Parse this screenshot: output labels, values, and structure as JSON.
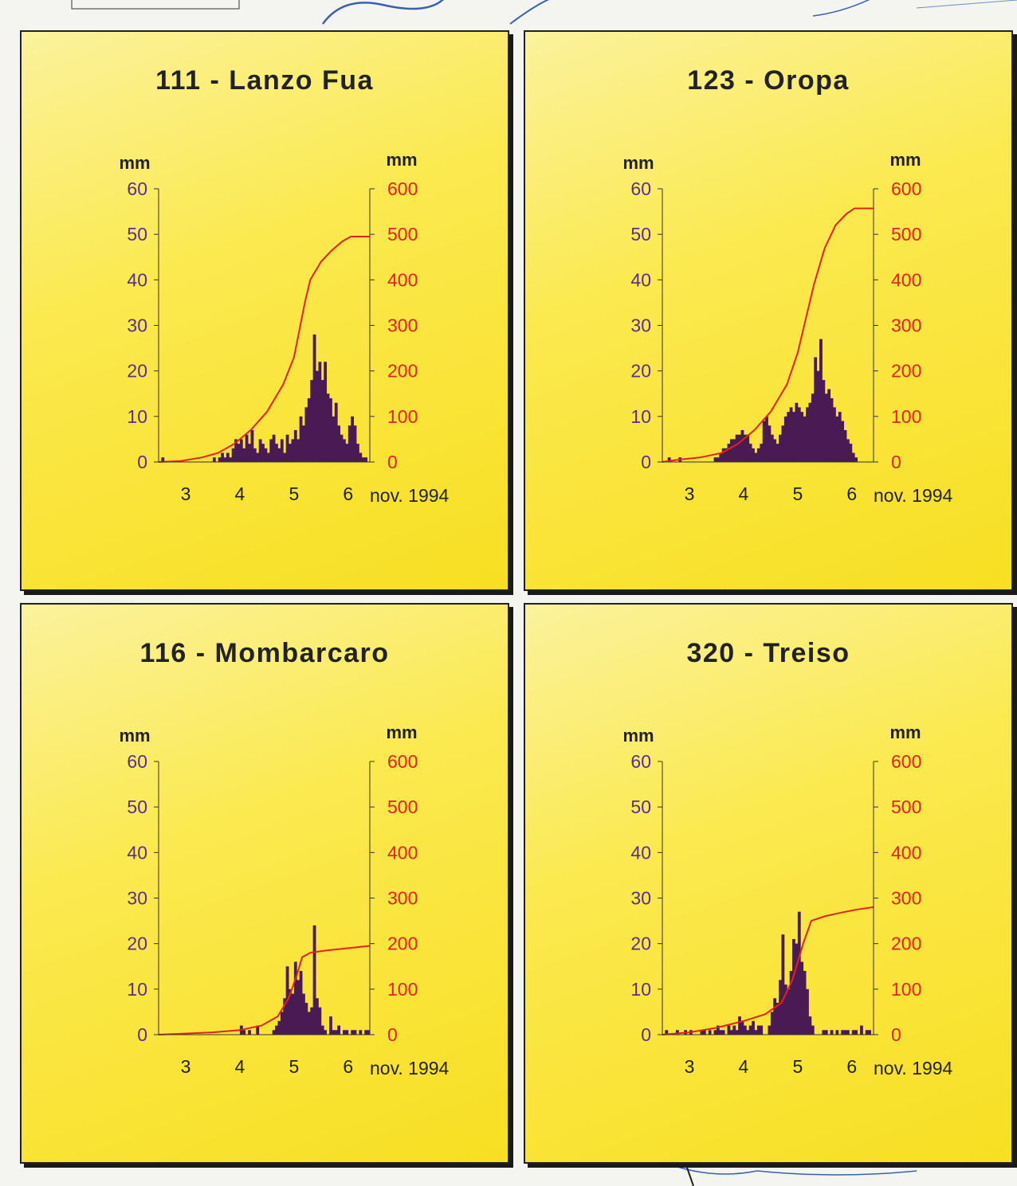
{
  "colors": {
    "left_axis": "#5a2f8c",
    "right_axis": "#e8201b",
    "bars": "#4a1a55",
    "cumulative": "#e8201b",
    "axis_line": "#333333",
    "unit_label": "#222222"
  },
  "panels": [
    {
      "title": "111 - Lanzo Fua",
      "chart_data": {
        "type": "bar",
        "unit_left": "mm",
        "unit_right": "mm",
        "y_left_ticks": [
          0,
          10,
          20,
          30,
          40,
          50,
          60
        ],
        "y_right_ticks": [
          0,
          100,
          200,
          300,
          400,
          500,
          600
        ],
        "ylim_left": [
          0,
          60
        ],
        "ylim_right": [
          0,
          600
        ],
        "x_ticks": [
          3,
          4,
          5,
          6
        ],
        "x_caption": "nov. 1994",
        "xlim": [
          2.5,
          6.4
        ],
        "bar_values": [
          0,
          1,
          0,
          0,
          0,
          0,
          0,
          0,
          0,
          0,
          0,
          0,
          0,
          0,
          0,
          0,
          0,
          0,
          0,
          0,
          1,
          0,
          1,
          2,
          1,
          2,
          1,
          3,
          5,
          4,
          5,
          3,
          6,
          4,
          7,
          3,
          2,
          5,
          4,
          3,
          2,
          5,
          6,
          4,
          3,
          5,
          2,
          6,
          4,
          5,
          7,
          5,
          10,
          8,
          12,
          14,
          18,
          28,
          20,
          22,
          18,
          22,
          15,
          14,
          10,
          13,
          8,
          6,
          5,
          4,
          8,
          10,
          8,
          4,
          2,
          1,
          1,
          0
        ],
        "cumulative": [
          [
            2.5,
            0
          ],
          [
            2.9,
            2
          ],
          [
            3.3,
            10
          ],
          [
            3.6,
            20
          ],
          [
            3.9,
            40
          ],
          [
            4.2,
            70
          ],
          [
            4.5,
            110
          ],
          [
            4.8,
            170
          ],
          [
            5.0,
            230
          ],
          [
            5.1,
            290
          ],
          [
            5.2,
            350
          ],
          [
            5.3,
            400
          ],
          [
            5.5,
            440
          ],
          [
            5.7,
            465
          ],
          [
            5.9,
            485
          ],
          [
            6.05,
            495
          ],
          [
            6.4,
            495
          ]
        ]
      }
    },
    {
      "title": "123 - Oropa",
      "chart_data": {
        "type": "bar",
        "unit_left": "mm",
        "unit_right": "mm",
        "y_left_ticks": [
          0,
          10,
          20,
          30,
          40,
          50,
          60
        ],
        "y_right_ticks": [
          0,
          100,
          200,
          300,
          400,
          500,
          600
        ],
        "ylim_left": [
          0,
          60
        ],
        "ylim_right": [
          0,
          600
        ],
        "x_ticks": [
          3,
          4,
          5,
          6
        ],
        "x_caption": "nov. 1994",
        "xlim": [
          2.5,
          6.4
        ],
        "bar_values": [
          0,
          0,
          1,
          0,
          0,
          0,
          1,
          0,
          0,
          0,
          0,
          0,
          0,
          0,
          0,
          0,
          0,
          0,
          0,
          1,
          1,
          2,
          3,
          3,
          4,
          5,
          5,
          6,
          6,
          7,
          6,
          6,
          4,
          3,
          2,
          3,
          4,
          9,
          10,
          8,
          6,
          5,
          4,
          6,
          8,
          10,
          11,
          12,
          11,
          13,
          12,
          11,
          10,
          12,
          13,
          15,
          23,
          20,
          27,
          18,
          15,
          16,
          14,
          12,
          10,
          11,
          9,
          7,
          5,
          4,
          2,
          1,
          0,
          0,
          0,
          0,
          0,
          0
        ],
        "cumulative": [
          [
            2.5,
            0
          ],
          [
            2.8,
            5
          ],
          [
            3.2,
            10
          ],
          [
            3.6,
            20
          ],
          [
            3.9,
            40
          ],
          [
            4.2,
            70
          ],
          [
            4.5,
            110
          ],
          [
            4.8,
            170
          ],
          [
            5.0,
            240
          ],
          [
            5.1,
            290
          ],
          [
            5.3,
            390
          ],
          [
            5.5,
            470
          ],
          [
            5.7,
            520
          ],
          [
            5.9,
            545
          ],
          [
            6.05,
            557
          ],
          [
            6.4,
            557
          ]
        ]
      }
    },
    {
      "title": "116 - Mombarcaro",
      "chart_data": {
        "type": "bar",
        "unit_left": "mm",
        "unit_right": "mm",
        "y_left_ticks": [
          0,
          10,
          20,
          30,
          40,
          50,
          60
        ],
        "y_right_ticks": [
          0,
          100,
          200,
          300,
          400,
          500,
          600
        ],
        "ylim_left": [
          0,
          60
        ],
        "ylim_right": [
          0,
          600
        ],
        "x_ticks": [
          3,
          4,
          5,
          6
        ],
        "x_caption": "nov. 1994",
        "xlim": [
          2.5,
          6.4
        ],
        "bar_values": [
          0,
          0,
          0,
          0,
          0,
          0,
          0,
          0,
          0,
          0,
          0,
          0,
          0,
          0,
          0,
          0,
          0,
          0,
          0,
          0,
          0,
          0,
          0,
          0,
          0,
          0,
          0,
          0,
          0,
          0,
          2,
          1,
          0,
          1,
          0,
          0,
          2,
          0,
          0,
          0,
          0,
          0,
          1,
          2,
          3,
          5,
          8,
          15,
          10,
          9,
          16,
          12,
          14,
          9,
          7,
          5,
          6,
          24,
          8,
          6,
          2,
          1,
          0,
          4,
          1,
          1,
          2,
          0,
          1,
          1,
          0,
          1,
          1,
          0,
          1,
          0,
          1,
          1
        ],
        "cumulative": [
          [
            2.5,
            0
          ],
          [
            3.5,
            5
          ],
          [
            4.0,
            10
          ],
          [
            4.4,
            20
          ],
          [
            4.7,
            40
          ],
          [
            4.9,
            80
          ],
          [
            5.05,
            130
          ],
          [
            5.15,
            170
          ],
          [
            5.3,
            180
          ],
          [
            5.6,
            185
          ],
          [
            6.0,
            190
          ],
          [
            6.4,
            195
          ]
        ]
      }
    },
    {
      "title": "320 - Treiso",
      "chart_data": {
        "type": "bar",
        "unit_left": "mm",
        "unit_right": "mm",
        "y_left_ticks": [
          0,
          10,
          20,
          30,
          40,
          50,
          60
        ],
        "y_right_ticks": [
          0,
          100,
          200,
          300,
          400,
          500,
          600
        ],
        "ylim_left": [
          0,
          60
        ],
        "ylim_right": [
          0,
          600
        ],
        "x_ticks": [
          3,
          4,
          5,
          6
        ],
        "x_caption": "nov. 1994",
        "xlim": [
          2.5,
          6.4
        ],
        "bar_values": [
          0,
          1,
          0,
          0,
          0,
          1,
          0,
          0,
          1,
          0,
          1,
          0,
          0,
          0,
          1,
          1,
          0,
          1,
          0,
          1,
          2,
          1,
          1,
          0,
          2,
          1,
          2,
          1,
          4,
          3,
          2,
          1,
          2,
          3,
          1,
          2,
          2,
          0,
          0,
          2,
          5,
          8,
          7,
          12,
          22,
          11,
          10,
          14,
          21,
          20,
          27,
          16,
          14,
          10,
          4,
          2,
          0,
          0,
          0,
          1,
          1,
          0,
          1,
          0,
          1,
          0,
          1,
          1,
          1,
          0,
          1,
          1,
          0,
          2,
          0,
          1,
          1,
          0
        ],
        "cumulative": [
          [
            2.5,
            0
          ],
          [
            3.0,
            5
          ],
          [
            3.5,
            15
          ],
          [
            4.0,
            30
          ],
          [
            4.4,
            45
          ],
          [
            4.7,
            70
          ],
          [
            4.9,
            120
          ],
          [
            5.1,
            200
          ],
          [
            5.25,
            250
          ],
          [
            5.5,
            260
          ],
          [
            5.8,
            268
          ],
          [
            6.1,
            275
          ],
          [
            6.4,
            280
          ]
        ]
      }
    }
  ]
}
